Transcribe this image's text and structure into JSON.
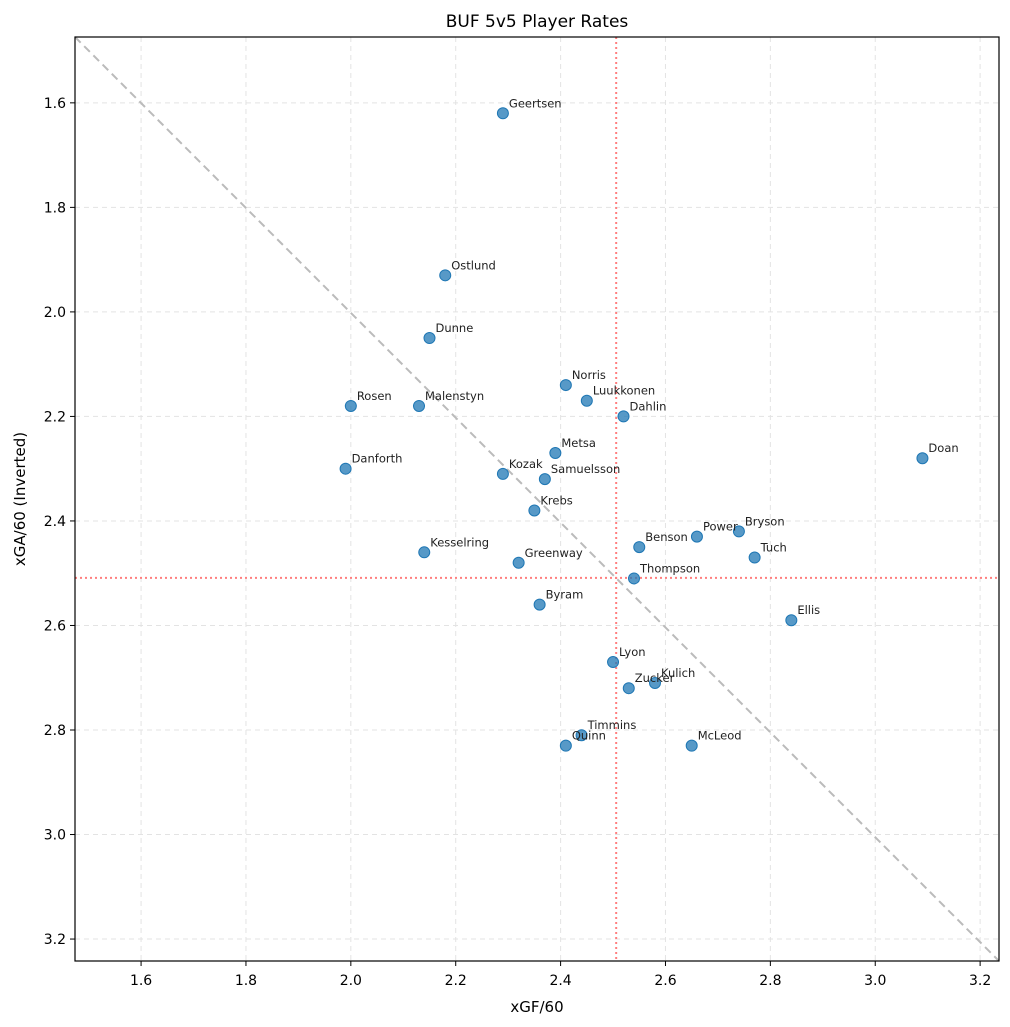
{
  "chart_data": {
    "type": "scatter",
    "title": "BUF 5v5 Player Rates",
    "xlabel": "xGF/60",
    "ylabel": "xGA/60 (Inverted)",
    "xlim": [
      1.474,
      3.236
    ],
    "ylim": [
      3.242,
      1.474
    ],
    "y_inverted": true,
    "x_ticks": [
      1.6,
      1.8,
      2.0,
      2.2,
      2.4,
      2.6,
      2.8,
      3.0,
      3.2
    ],
    "y_ticks": [
      1.6,
      1.8,
      2.0,
      2.2,
      2.4,
      2.6,
      2.8,
      3.0,
      3.2
    ],
    "grid": true,
    "legend": null,
    "marker_color": "#1f77b4",
    "reference_lines": {
      "x_mean": 2.506,
      "y_mean": 2.509,
      "mean_line_color": "#ff7f7f",
      "diagonal": {
        "from": [
          1.474,
          1.474
        ],
        "to": [
          3.236,
          3.242
        ],
        "color": "#bbbbbb",
        "style": "dashed"
      }
    },
    "points": [
      {
        "name": "Geertsen",
        "x": 2.29,
        "y": 1.62
      },
      {
        "name": "Ostlund",
        "x": 2.18,
        "y": 1.93
      },
      {
        "name": "Dunne",
        "x": 2.15,
        "y": 2.05
      },
      {
        "name": "Norris",
        "x": 2.41,
        "y": 2.14
      },
      {
        "name": "Luukkonen",
        "x": 2.45,
        "y": 2.17
      },
      {
        "name": "Rosen",
        "x": 2.0,
        "y": 2.18
      },
      {
        "name": "Malenstyn",
        "x": 2.13,
        "y": 2.18
      },
      {
        "name": "Dahlin",
        "x": 2.52,
        "y": 2.2
      },
      {
        "name": "Metsa",
        "x": 2.39,
        "y": 2.27
      },
      {
        "name": "Doan",
        "x": 3.09,
        "y": 2.28
      },
      {
        "name": "Danforth",
        "x": 1.99,
        "y": 2.3
      },
      {
        "name": "Kozak",
        "x": 2.29,
        "y": 2.31
      },
      {
        "name": "Samuelsson",
        "x": 2.37,
        "y": 2.32
      },
      {
        "name": "Krebs",
        "x": 2.35,
        "y": 2.38
      },
      {
        "name": "Bryson",
        "x": 2.74,
        "y": 2.42
      },
      {
        "name": "Power",
        "x": 2.66,
        "y": 2.43
      },
      {
        "name": "Benson",
        "x": 2.55,
        "y": 2.45
      },
      {
        "name": "Kesselring",
        "x": 2.14,
        "y": 2.46
      },
      {
        "name": "Tuch",
        "x": 2.77,
        "y": 2.47
      },
      {
        "name": "Greenway",
        "x": 2.32,
        "y": 2.48
      },
      {
        "name": "Thompson",
        "x": 2.54,
        "y": 2.51
      },
      {
        "name": "Byram",
        "x": 2.36,
        "y": 2.56
      },
      {
        "name": "Ellis",
        "x": 2.84,
        "y": 2.59
      },
      {
        "name": "Lyon",
        "x": 2.5,
        "y": 2.67
      },
      {
        "name": "Kulich",
        "x": 2.58,
        "y": 2.71
      },
      {
        "name": "Zucker",
        "x": 2.53,
        "y": 2.72
      },
      {
        "name": "Timmins",
        "x": 2.44,
        "y": 2.81
      },
      {
        "name": "Quinn",
        "x": 2.41,
        "y": 2.83
      },
      {
        "name": "McLeod",
        "x": 2.65,
        "y": 2.83
      }
    ]
  }
}
